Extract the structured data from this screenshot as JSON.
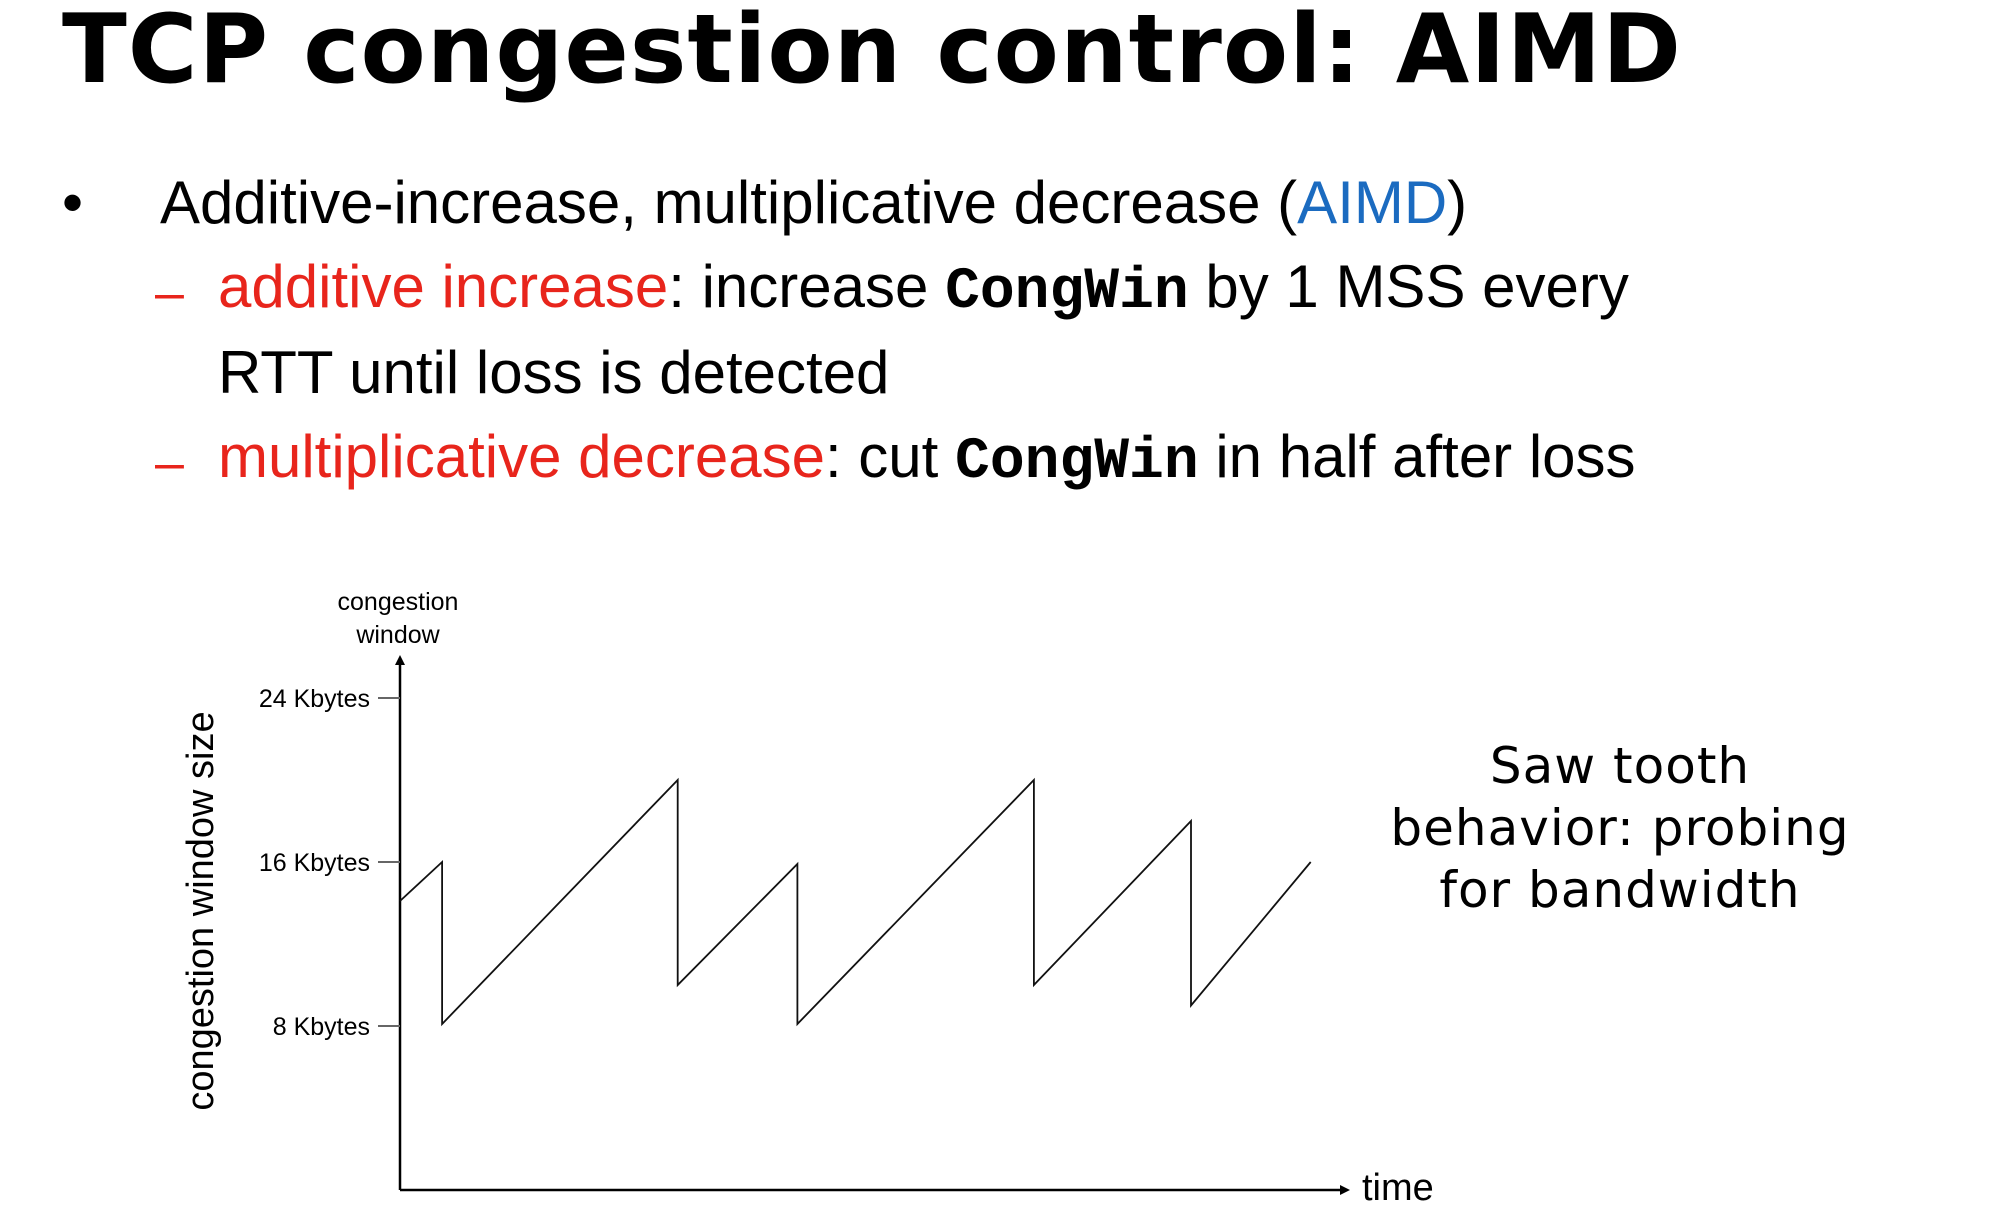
{
  "slide": {
    "title": "TCP congestion control: AIMD",
    "bullet": {
      "text_before": "Additive-increase, multiplicative decrease (",
      "highlight": "AIMD",
      "text_after": ")"
    },
    "sub_items": [
      {
        "marker": "–",
        "term": "additive increase",
        "text_1": ": increase ",
        "code": "CongWin",
        "text_2": " by 1 MSS every",
        "text_line2": "RTT until loss is detected"
      },
      {
        "marker": "–",
        "term": "multiplicative decrease",
        "text_1": ": cut ",
        "code": "CongWin",
        "text_2": " in half after loss"
      }
    ],
    "caption": {
      "line1": "Saw tooth",
      "line2": "behavior: probing",
      "line3": "for bandwidth"
    }
  },
  "colors": {
    "term": "#e8251c",
    "highlight": "#1b6bc0",
    "text": "#000000"
  },
  "chart_data": {
    "type": "line",
    "title": "",
    "xlabel": "time",
    "ylabel": "congestion window size",
    "y_axis_top_label": "congestion\nwindow",
    "ytick_values": [
      8,
      16,
      24
    ],
    "ytick_labels": [
      "8 Kbytes",
      "16 Kbytes",
      "24 Kbytes"
    ],
    "y_unit": "Kbytes",
    "ylim": [
      0,
      25
    ],
    "xlim": [
      0,
      100
    ],
    "grid": false,
    "series": [
      {
        "x": [
          0,
          4.5,
          4.5,
          29.7,
          29.7,
          42.5,
          42.5,
          67.8,
          67.8,
          84.6,
          84.6,
          97.4
        ],
        "values": [
          14.1,
          16.0,
          8.1,
          20.0,
          10.0,
          15.9,
          8.1,
          20.0,
          10.0,
          18.0,
          9.0,
          16.0
        ]
      }
    ]
  }
}
